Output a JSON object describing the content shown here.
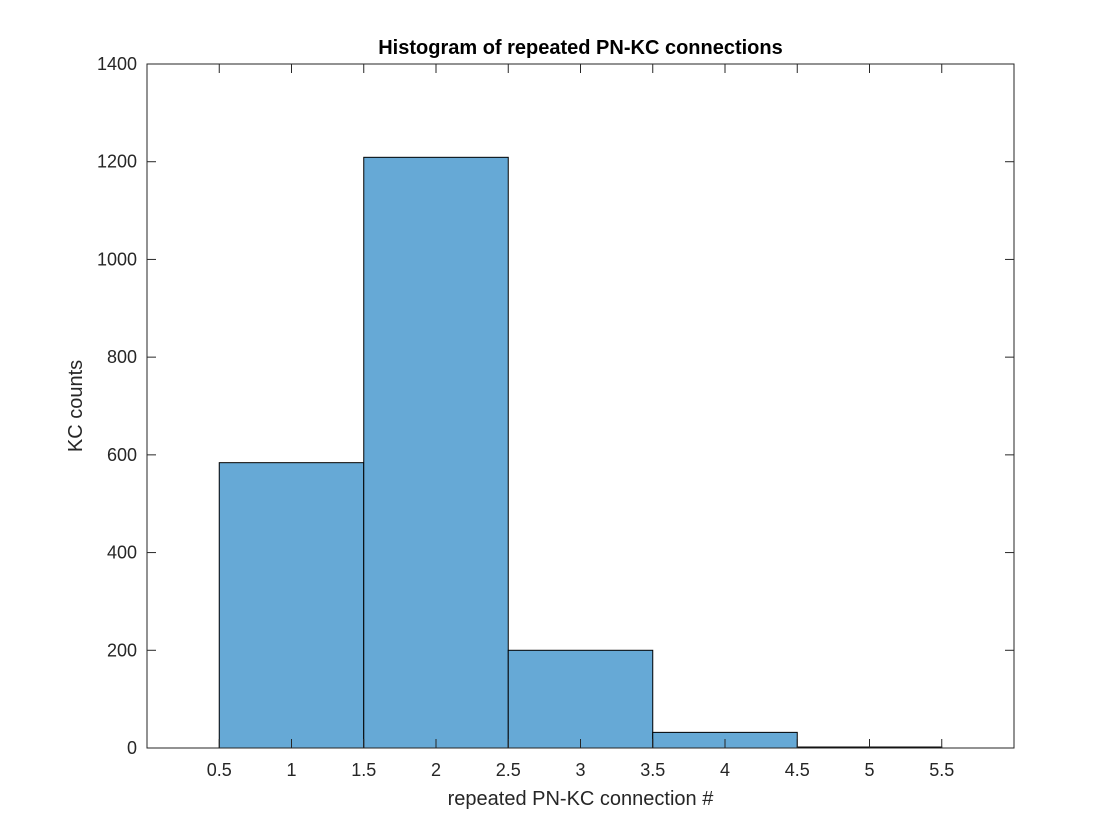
{
  "chart_data": {
    "type": "bar",
    "subtype": "histogram",
    "title": "Histogram of repeated PN-KC connections",
    "xlabel": "repeated PN-KC connection #",
    "ylabel": "KC counts",
    "bin_edges": [
      0.5,
      1.5,
      2.5,
      3.5,
      4.5,
      5.5
    ],
    "values": [
      584,
      1209,
      200,
      32,
      2
    ],
    "xlim": [
      0,
      6
    ],
    "ylim": [
      0,
      1400
    ],
    "x_ticks": [
      0.5,
      1,
      1.5,
      2,
      2.5,
      3,
      3.5,
      4,
      4.5,
      5,
      5.5
    ],
    "y_ticks": [
      0,
      200,
      400,
      600,
      800,
      1000,
      1200,
      1400
    ],
    "bar_color": "#66a9d6",
    "edge_color": "#000000",
    "grid": false,
    "legend": "none"
  }
}
